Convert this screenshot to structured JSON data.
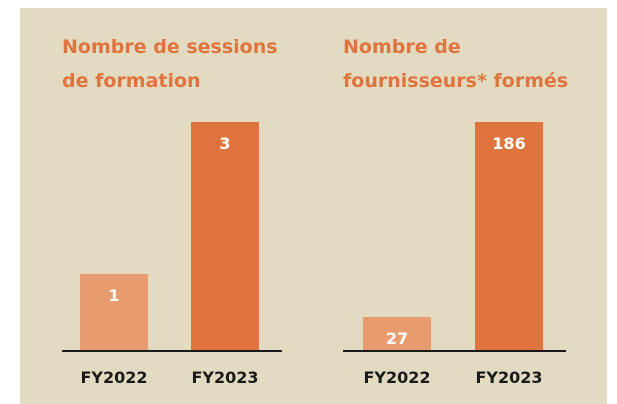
{
  "chart_data": [
    {
      "type": "bar",
      "title": "Nombre de sessions\nde formation",
      "categories": [
        "FY2022",
        "FY2023"
      ],
      "values": [
        1,
        3
      ],
      "colors": [
        "#e89b6f",
        "#e0743e"
      ]
    },
    {
      "type": "bar",
      "title": "Nombre de\nfournisseurs* formés",
      "categories": [
        "FY2022",
        "FY2023"
      ],
      "values": [
        27,
        186
      ],
      "colors": [
        "#e89b6f",
        "#e0743e"
      ]
    }
  ]
}
